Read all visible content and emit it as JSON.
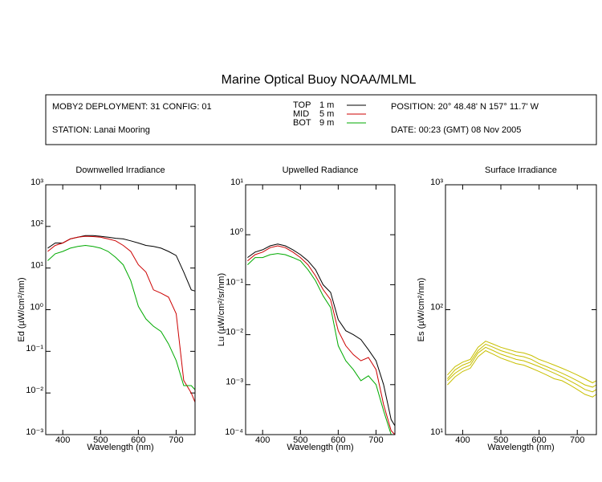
{
  "header": {
    "title": "Marine Optical Buoy NOAA/MLML",
    "deployment": "MOBY2 DEPLOYMENT: 31 CONFIG: 01",
    "station": "STATION: Lanai Mooring",
    "position": "POSITION: 20° 48.48' N   157° 11.7' W",
    "date": "DATE: 00:23 (GMT) 08 Nov 2005",
    "legend": [
      {
        "name": "TOP",
        "depth": "1  m",
        "color": "#000000"
      },
      {
        "name": "MID",
        "depth": "5  m",
        "color": "#cc0000"
      },
      {
        "name": "BOT",
        "depth": "9  m",
        "color": "#00aa00"
      }
    ]
  },
  "chart_data": [
    {
      "type": "line",
      "title": "Downwelled Irradiance",
      "xlabel": "Wavelength (nm)",
      "ylabel": "Ed  (µW/cm²/nm)",
      "log_y": true,
      "x": [
        360,
        380,
        400,
        420,
        440,
        460,
        480,
        500,
        520,
        540,
        560,
        580,
        600,
        620,
        640,
        660,
        680,
        700,
        720,
        740,
        750
      ],
      "xlim": [
        355,
        750
      ],
      "xticks": [
        400,
        500,
        600,
        700
      ],
      "ylim": [
        0.001,
        1000
      ],
      "yticks": [
        {
          "value": 0.001,
          "label": "10⁻³"
        },
        {
          "value": 0.01,
          "label": "10⁻²"
        },
        {
          "value": 0.1,
          "label": "10⁻¹"
        },
        {
          "value": 1,
          "label": "10⁰"
        },
        {
          "value": 10,
          "label": "10¹"
        },
        {
          "value": 100,
          "label": "10²"
        },
        {
          "value": 1000,
          "label": "10³"
        }
      ],
      "series": [
        {
          "color": "#000000",
          "values": [
            30,
            40,
            40,
            50,
            55,
            60,
            60,
            58,
            55,
            52,
            50,
            45,
            40,
            35,
            33,
            30,
            25,
            20,
            8,
            3,
            2.8
          ]
        },
        {
          "color": "#cc0000",
          "values": [
            25,
            35,
            40,
            50,
            55,
            58,
            57,
            55,
            50,
            45,
            35,
            25,
            12,
            8,
            3,
            2.5,
            2,
            0.8,
            0.02,
            0.01,
            0.006
          ]
        },
        {
          "color": "#00aa00",
          "values": [
            15,
            22,
            25,
            30,
            33,
            35,
            33,
            30,
            25,
            18,
            12,
            5,
            1.2,
            0.6,
            0.4,
            0.3,
            0.15,
            0.06,
            0.015,
            0.015,
            0.012
          ]
        }
      ]
    },
    {
      "type": "line",
      "title": "Upwelled Radiance",
      "xlabel": "Wavelength (nm)",
      "ylabel": "Lu  (µW/cm²/sr/nm)",
      "log_y": true,
      "x": [
        360,
        380,
        400,
        420,
        440,
        460,
        480,
        500,
        520,
        540,
        560,
        580,
        600,
        620,
        640,
        660,
        680,
        700,
        720,
        740,
        750
      ],
      "xlim": [
        355,
        750
      ],
      "xticks": [
        400,
        500,
        600,
        700
      ],
      "ylim": [
        0.0001,
        10
      ],
      "yticks": [
        {
          "value": 0.0001,
          "label": "10⁻⁴"
        },
        {
          "value": 0.001,
          "label": "10⁻³"
        },
        {
          "value": 0.01,
          "label": "10⁻²"
        },
        {
          "value": 0.1,
          "label": "10⁻¹"
        },
        {
          "value": 1,
          "label": "10⁰"
        },
        {
          "value": 10,
          "label": "10¹"
        }
      ],
      "series": [
        {
          "color": "#000000",
          "values": [
            0.35,
            0.45,
            0.5,
            0.6,
            0.65,
            0.6,
            0.5,
            0.4,
            0.3,
            0.2,
            0.1,
            0.07,
            0.02,
            0.012,
            0.01,
            0.008,
            0.005,
            0.003,
            0.001,
            0.0002,
            0.00015
          ]
        },
        {
          "color": "#cc0000",
          "values": [
            0.3,
            0.4,
            0.45,
            0.55,
            0.6,
            0.55,
            0.45,
            0.35,
            0.25,
            0.15,
            0.08,
            0.05,
            0.012,
            0.006,
            0.004,
            0.003,
            0.0035,
            0.002,
            0.0004,
            0.00012,
            0.0001
          ]
        },
        {
          "color": "#00aa00",
          "values": [
            0.25,
            0.35,
            0.35,
            0.4,
            0.42,
            0.4,
            0.35,
            0.3,
            0.2,
            0.12,
            0.06,
            0.035,
            0.006,
            0.003,
            0.002,
            0.0012,
            0.0015,
            0.001,
            0.0003,
            0.0001,
            0.0001
          ]
        }
      ]
    },
    {
      "type": "line",
      "title": "Surface Irradiance",
      "xlabel": "Wavelength (nm)",
      "ylabel": "Es  (µW/cm²/nm)",
      "log_y": true,
      "x": [
        360,
        380,
        400,
        420,
        440,
        460,
        480,
        500,
        520,
        540,
        560,
        580,
        600,
        620,
        640,
        660,
        680,
        700,
        720,
        740,
        750
      ],
      "xlim": [
        355,
        750
      ],
      "xticks": [
        400,
        500,
        600,
        700
      ],
      "ylim": [
        10,
        1000
      ],
      "yticks": [
        {
          "value": 10,
          "label": "10¹"
        },
        {
          "value": 100,
          "label": "10²"
        },
        {
          "value": 1000,
          "label": "10³"
        }
      ],
      "series": [
        {
          "color": "#c8bf00",
          "values": [
            30,
            35,
            38,
            40,
            50,
            56,
            53,
            50,
            48,
            46,
            45,
            43,
            40,
            38,
            36,
            34,
            32,
            30,
            28,
            26,
            27
          ]
        },
        {
          "color": "#c8bf00",
          "values": [
            28,
            33,
            36,
            38,
            47,
            53,
            50,
            47,
            45,
            43,
            42,
            40,
            37,
            35,
            33,
            31,
            29,
            27,
            25,
            24,
            25
          ]
        },
        {
          "color": "#c8bf00",
          "values": [
            27,
            31,
            34,
            36,
            45,
            50,
            47,
            44,
            42,
            40,
            39,
            37,
            35,
            33,
            31,
            29,
            27,
            25,
            23,
            22,
            23
          ]
        },
        {
          "color": "#c8bf00",
          "values": [
            25,
            29,
            32,
            34,
            42,
            47,
            44,
            41,
            39,
            37,
            36,
            34,
            32,
            30,
            28,
            27,
            25,
            23,
            21,
            20,
            21
          ]
        }
      ]
    }
  ]
}
